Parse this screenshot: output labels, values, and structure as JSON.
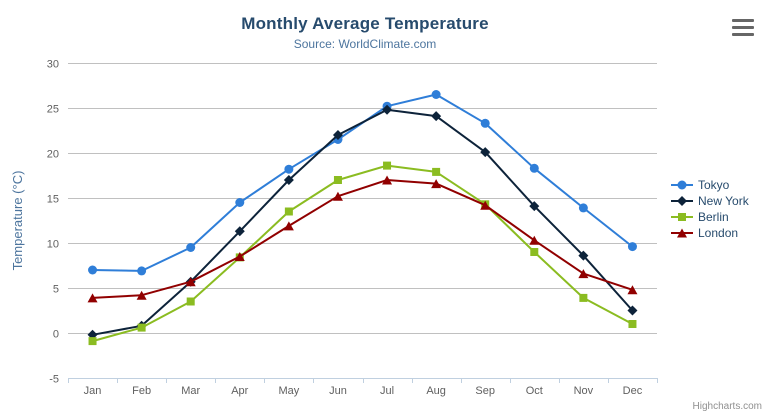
{
  "header": {
    "title": "Monthly Average Temperature",
    "subtitle": "Source: WorldClimate.com"
  },
  "export_menu": {
    "icon": "hamburger-menu-icon"
  },
  "credits": {
    "label": "Highcharts.com"
  },
  "chart_data": {
    "type": "line",
    "title": "Monthly Average Temperature",
    "subtitle": "Source: WorldClimate.com",
    "categories": [
      "Jan",
      "Feb",
      "Mar",
      "Apr",
      "May",
      "Jun",
      "Jul",
      "Aug",
      "Sep",
      "Oct",
      "Nov",
      "Dec"
    ],
    "series": [
      {
        "name": "Tokyo",
        "color": "#2f7ed8",
        "marker": "circle",
        "values": [
          7.0,
          6.9,
          9.5,
          14.5,
          18.2,
          21.5,
          25.2,
          26.5,
          23.3,
          18.3,
          13.9,
          9.6
        ]
      },
      {
        "name": "New York",
        "color": "#0d233a",
        "marker": "diamond",
        "values": [
          -0.2,
          0.8,
          5.7,
          11.3,
          17.0,
          22.0,
          24.8,
          24.1,
          20.1,
          14.1,
          8.6,
          2.5
        ]
      },
      {
        "name": "Berlin",
        "color": "#8bbc21",
        "marker": "square",
        "values": [
          -0.9,
          0.6,
          3.5,
          8.4,
          13.5,
          17.0,
          18.6,
          17.9,
          14.3,
          9.0,
          3.9,
          1.0
        ]
      },
      {
        "name": "London",
        "color": "#910000",
        "marker": "triangle",
        "values": [
          3.9,
          4.2,
          5.7,
          8.5,
          11.9,
          15.2,
          17.0,
          16.6,
          14.2,
          10.3,
          6.6,
          4.8
        ]
      }
    ],
    "xlabel": "",
    "ylabel": "Temperature (°C)",
    "ylim": [
      -5,
      30
    ],
    "ytick_interval": 5,
    "grid": true,
    "legend_position": "right",
    "colors": {
      "grid_line": "#C0C0C0",
      "axis_line": "#C0D0E0",
      "tick": "#C0D0E0",
      "axis_label": "#606060",
      "yaxis_title": "#4d759e",
      "legend_text": "#274b6d"
    }
  }
}
